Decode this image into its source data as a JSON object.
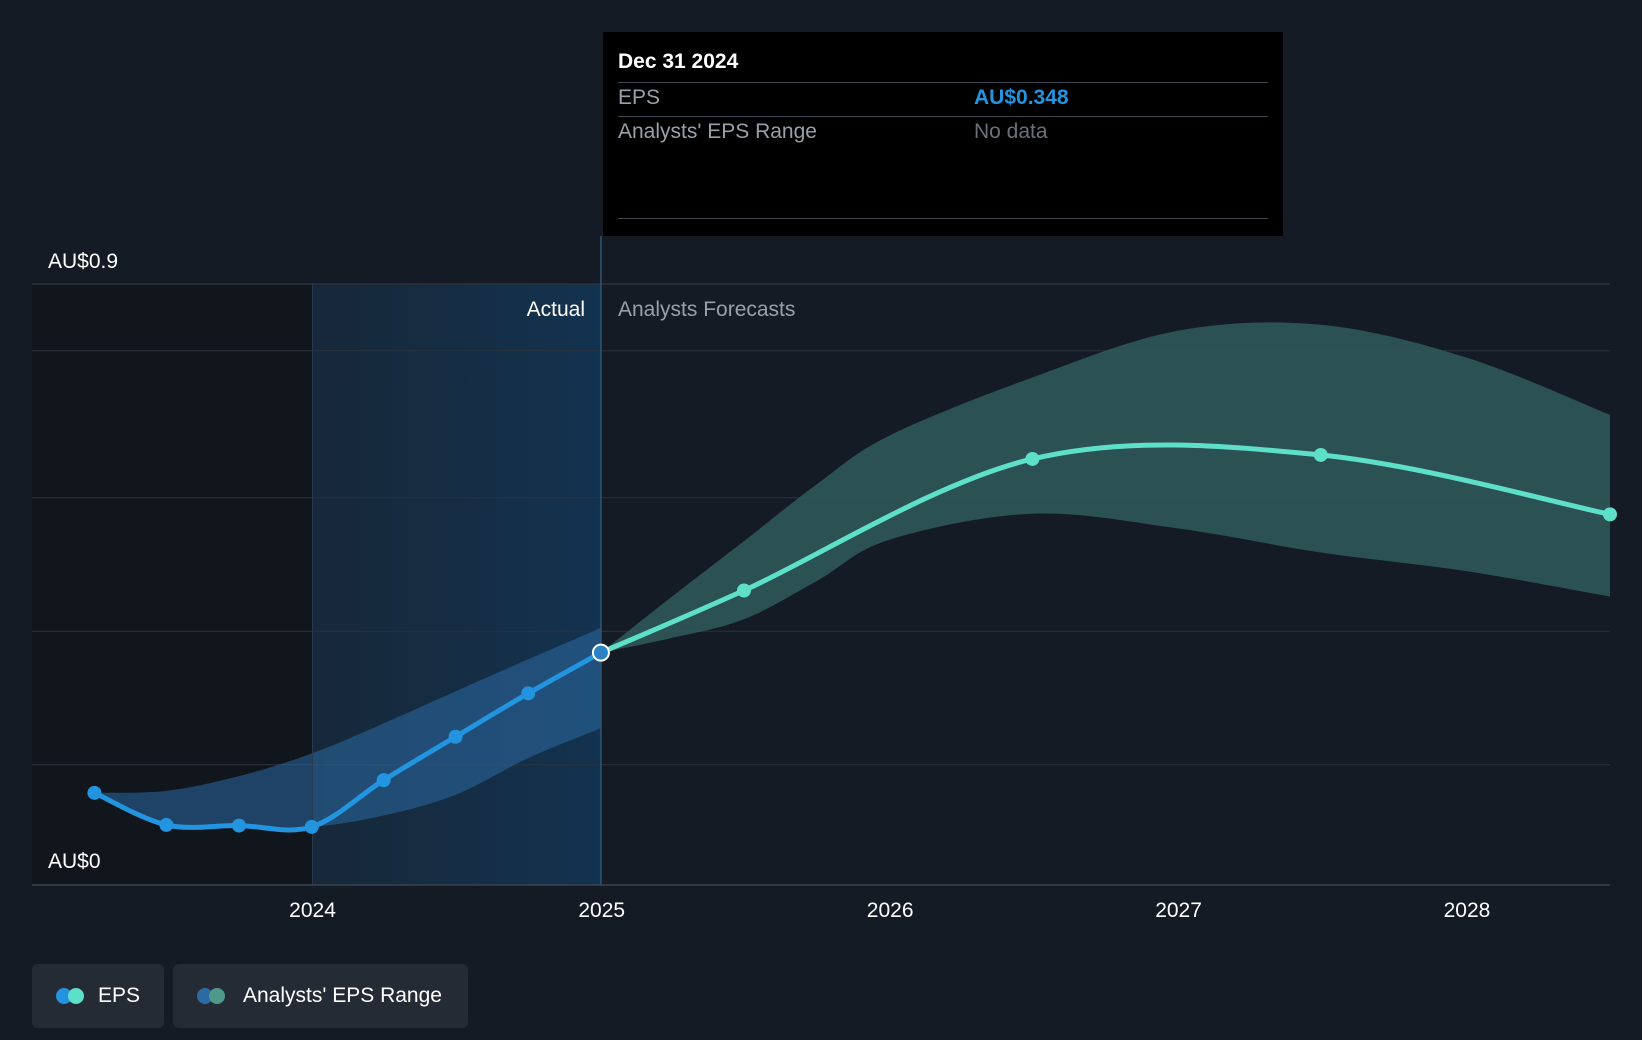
{
  "chart_data": {
    "type": "line",
    "y_axis": {
      "top_label": "AU$0.9",
      "bottom_label": "AU$0",
      "ylim": [
        0,
        0.9
      ]
    },
    "x_axis": {
      "ticks": [
        "2024",
        "2025",
        "2026",
        "2027",
        "2028"
      ],
      "xlim": [
        "2023-01-11",
        "2028-06-30"
      ]
    },
    "sections": {
      "actual": "Actual",
      "forecast": "Analysts Forecasts"
    },
    "series": [
      {
        "name": "EPS",
        "color": "#2394df",
        "points": [
          {
            "date": "2023-03-31",
            "value": 0.138
          },
          {
            "date": "2023-06-30",
            "value": 0.09
          },
          {
            "date": "2023-09-30",
            "value": 0.089
          },
          {
            "date": "2023-12-31",
            "value": 0.087
          },
          {
            "date": "2024-03-31",
            "value": 0.157
          },
          {
            "date": "2024-06-30",
            "value": 0.222
          },
          {
            "date": "2024-09-30",
            "value": 0.287
          },
          {
            "date": "2024-12-31",
            "value": 0.348
          }
        ]
      },
      {
        "name": "EPS Forecast",
        "color": "#5ee0c8",
        "points": [
          {
            "date": "2024-12-31",
            "value": 0.348
          },
          {
            "date": "2025-06-30",
            "value": 0.441
          },
          {
            "date": "2026-06-30",
            "value": 0.638
          },
          {
            "date": "2027-06-30",
            "value": 0.644
          },
          {
            "date": "2028-06-30",
            "value": 0.555
          }
        ]
      }
    ],
    "ranges": [
      {
        "name": "Analysts' EPS Range (actual)",
        "color": "#2b6aa3",
        "dates": [
          "2023-03-31",
          "2023-06-30",
          "2023-09-30",
          "2023-12-31",
          "2024-03-31",
          "2024-06-30",
          "2024-09-30",
          "2024-12-31"
        ],
        "upper": [
          0.138,
          0.141,
          0.163,
          0.197,
          0.242,
          0.29,
          0.338,
          0.385
        ],
        "lower": [
          0.138,
          0.09,
          0.089,
          0.087,
          0.104,
          0.135,
          0.19,
          0.235
        ]
      },
      {
        "name": "Analysts' EPS Range (forecast)",
        "color": "#2f5a5a",
        "dates": [
          "2024-12-31",
          "2025-03-31",
          "2025-06-30",
          "2025-09-30",
          "2025-12-31",
          "2026-06-30",
          "2026-12-31",
          "2027-06-30",
          "2027-12-31",
          "2028-06-30"
        ],
        "upper": [
          0.348,
          0.432,
          0.515,
          0.6,
          0.673,
          0.76,
          0.83,
          0.839,
          0.79,
          0.704
        ],
        "lower": [
          0.348,
          0.37,
          0.398,
          0.455,
          0.517,
          0.556,
          0.534,
          0.498,
          0.47,
          0.432
        ]
      }
    ],
    "gridlines": [
      0.18,
      0.38,
      0.58,
      0.8,
      0.9
    ],
    "highlight_date": "2024-12-31"
  },
  "tooltip": {
    "date": "Dec 31 2024",
    "eps_label": "EPS",
    "eps_value": "AU$0.348",
    "eps_value_color": "#2394df",
    "range_label": "Analysts' EPS Range",
    "range_value": "No data"
  },
  "legend": {
    "items": [
      {
        "label": "EPS",
        "colors": [
          "#2394df",
          "#5ee0c8"
        ]
      },
      {
        "label": "Analysts' EPS Range",
        "colors": [
          "#2b6aa3",
          "#4d9a8c"
        ]
      }
    ]
  }
}
